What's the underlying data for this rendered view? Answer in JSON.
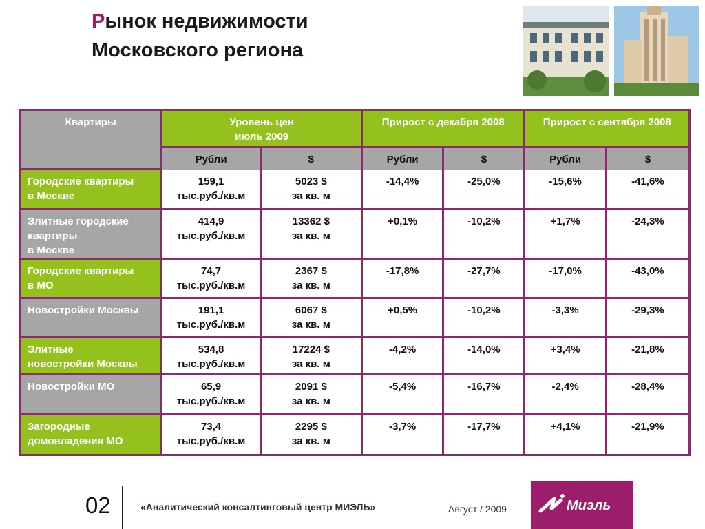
{
  "title": {
    "accent_letter": "Р",
    "line1_rest": "ынок недвижимости",
    "line2": "Московского региона"
  },
  "table": {
    "header": {
      "col_label": "Квартиры",
      "group_price": [
        "Уровень цен",
        "июль  2009"
      ],
      "group_dec": "Прирост с декабря 2008",
      "group_sep": "Прирост с сентября 2008",
      "sub": [
        "Рубли",
        "$",
        "Рубли",
        "$",
        "Рубли",
        "$"
      ]
    },
    "rows": [
      {
        "label": [
          "Городские квартиры",
          "в Москве"
        ],
        "style": "green",
        "rub": [
          "159,1",
          "тыс.руб./кв.м"
        ],
        "usd": [
          "5023 $",
          "за кв. м"
        ],
        "dec_rub": "-14,4%",
        "dec_usd": "-25,0%",
        "sep_rub": "-15,6%",
        "sep_usd": "-41,6%"
      },
      {
        "label": [
          "Элитные городские",
          "квартиры",
          "в Москве"
        ],
        "style": "gray",
        "rub": [
          "414,9",
          "тыс.руб./кв.м"
        ],
        "usd": [
          "13362 $",
          "за кв. м"
        ],
        "dec_rub": "+0,1%",
        "dec_usd": "-10,2%",
        "sep_rub": "+1,7%",
        "sep_usd": "-24,3%"
      },
      {
        "label": [
          "Городские квартиры",
          "в МО"
        ],
        "style": "green",
        "rub": [
          "74,7",
          "тыс.руб./кв.м"
        ],
        "usd": [
          "2367 $",
          "за кв. м"
        ],
        "dec_rub": "-17,8%",
        "dec_usd": "-27,7%",
        "sep_rub": "-17,0%",
        "sep_usd": "-43,0%"
      },
      {
        "label": [
          "Новостройки Москвы"
        ],
        "style": "gray",
        "rub": [
          "191,1",
          "тыс.руб./кв.м"
        ],
        "usd": [
          "6067 $",
          "за кв. м"
        ],
        "dec_rub": "+0,5%",
        "dec_usd": "-10,2%",
        "sep_rub": "-3,3%",
        "sep_usd": "-29,3%"
      },
      {
        "label": [
          "Элитные",
          "новостройки Москвы"
        ],
        "style": "green",
        "rub": [
          "534,8",
          "тыс.руб./кв.м"
        ],
        "usd": [
          "17224 $",
          "за кв. м"
        ],
        "dec_rub": "-4,2%",
        "dec_usd": "-14,0%",
        "sep_rub": "+3,4%",
        "sep_usd": "-21,8%"
      },
      {
        "label": [
          "Новостройки МО"
        ],
        "style": "gray",
        "rub": [
          "65,9",
          "тыс.руб./кв.м"
        ],
        "usd": [
          "2091 $",
          "за кв. м"
        ],
        "dec_rub": "-5,4%",
        "dec_usd": "-16,7%",
        "sep_rub": "-2,4%",
        "sep_usd": "-28,4%"
      },
      {
        "label": [
          "Загородные",
          "домовладения МО"
        ],
        "style": "green",
        "rub": [
          "73,4",
          "тыс.руб./кв.м"
        ],
        "usd": [
          "2295 $",
          "за кв. м"
        ],
        "dec_rub": "-3,7%",
        "dec_usd": "-17,7%",
        "sep_rub": "+4,1%",
        "sep_usd": "-21,9%"
      }
    ]
  },
  "footer": {
    "page_number": "02",
    "center": "«Аналитический консалтинговый центр МИЭЛЬ»",
    "date": "Август / 2009",
    "logo_text": "Миэль"
  },
  "colors": {
    "accent": "#9c1e6b",
    "green": "#95c11f",
    "gray": "#a6a6a6",
    "border": "#8a2c6b"
  },
  "icons": [
    "building-photo",
    "tower-photo",
    "miel-logo"
  ]
}
